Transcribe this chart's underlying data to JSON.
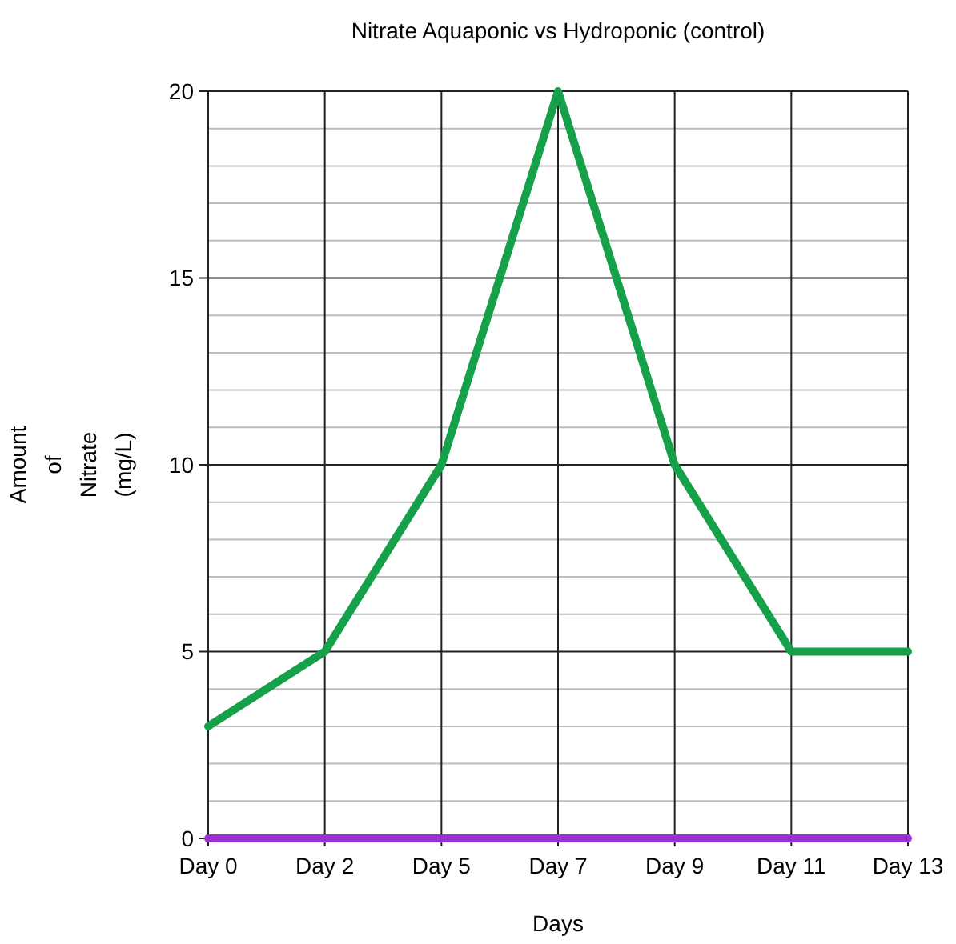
{
  "chart_data": {
    "type": "line",
    "title": "Nitrate Aquaponic vs Hydroponic (control)",
    "xlabel": "Days",
    "ylabel": "Amount of Nitrate (mg/L)",
    "categories": [
      "Day 0",
      "Day 2",
      "Day 5",
      "Day 7",
      "Day 9",
      "Day 11",
      "Day 13"
    ],
    "series": [
      {
        "color": "#16a04a",
        "values": [
          3,
          5,
          10,
          20,
          10,
          5,
          5
        ]
      },
      {
        "color": "#9b30d9",
        "values": [
          0,
          0,
          0,
          0,
          0,
          0,
          0
        ]
      }
    ],
    "ylim": [
      0,
      20
    ],
    "yticks": [
      0,
      {
        "value": 1,
        "label": null
      },
      {
        "value": 2,
        "label": null
      },
      {
        "value": 3,
        "label": null
      },
      {
        "value": 4,
        "label": null
      },
      5,
      {
        "value": 6,
        "label": null
      },
      {
        "value": 7,
        "label": null
      },
      {
        "value": 8,
        "label": null
      },
      {
        "value": 9,
        "label": null
      },
      10,
      {
        "value": 11,
        "label": null
      },
      {
        "value": 12,
        "label": null
      },
      {
        "value": 13,
        "label": null
      },
      {
        "value": 14,
        "label": null
      },
      15,
      {
        "value": 16,
        "label": null
      },
      {
        "value": 17,
        "label": null
      },
      {
        "value": 18,
        "label": null
      },
      {
        "value": 19,
        "label": null
      },
      20
    ],
    "grid": true,
    "marker": "none",
    "line_style": "solid"
  }
}
